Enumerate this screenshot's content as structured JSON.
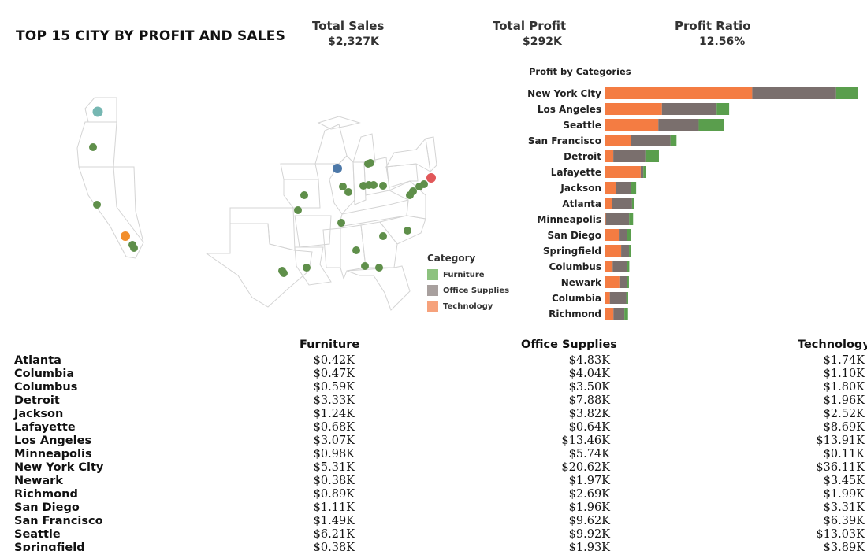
{
  "dashboard": {
    "title": "TOP 15 CITY BY PROFIT AND SALES"
  },
  "kpis": {
    "total_sales": {
      "label": "Total Sales",
      "value": "$2,327K"
    },
    "total_profit": {
      "label": "Total Profit",
      "value": "$292K"
    },
    "profit_ratio": {
      "label": "Profit Ratio",
      "value": "12.56%"
    }
  },
  "colors": {
    "furniture": "#5a9e4d",
    "office_supplies": "#7a6f6d",
    "technology": "#f47c42",
    "legend_furniture": "#8dc27f",
    "legend_office_supplies": "#a8a09e",
    "legend_technology": "#f6a27c",
    "map_point": "#5f8f4a",
    "map_highlight_blue": "#4c78a8",
    "map_highlight_red": "#e15759",
    "map_highlight_orange": "#f28e2b",
    "map_highlight_teal": "#76b7b2"
  },
  "legend": {
    "title": "Category",
    "items": [
      {
        "label": "Furniture",
        "color_key": "legend_furniture"
      },
      {
        "label": "Office Supplies",
        "color_key": "legend_office_supplies"
      },
      {
        "label": "Technology",
        "color_key": "legend_technology"
      }
    ]
  },
  "chart_data": {
    "type": "bar",
    "orientation": "horizontal",
    "stacked": true,
    "title": "Profit by Categories",
    "categories": [
      "New York City",
      "Los Angeles",
      "Seattle",
      "San Francisco",
      "Detroit",
      "Lafayette",
      "Jackson",
      "Atlanta",
      "Minneapolis",
      "San Diego",
      "Springfield",
      "Columbus",
      "Newark",
      "Columbia",
      "Richmond"
    ],
    "series": [
      {
        "name": "Technology",
        "values": [
          36.11,
          13.91,
          13.03,
          6.39,
          1.96,
          8.69,
          2.52,
          1.74,
          0.11,
          3.31,
          3.89,
          1.8,
          3.45,
          1.1,
          1.99
        ]
      },
      {
        "name": "Office Supplies",
        "values": [
          20.62,
          13.46,
          9.92,
          9.62,
          7.88,
          0.64,
          3.82,
          4.83,
          5.74,
          1.96,
          1.93,
          3.5,
          1.97,
          4.04,
          2.69
        ]
      },
      {
        "name": "Furniture",
        "values": [
          5.31,
          3.07,
          6.21,
          1.49,
          3.33,
          0.68,
          1.24,
          0.42,
          0.98,
          1.11,
          0.38,
          0.59,
          0.38,
          0.47,
          0.89
        ]
      }
    ],
    "unit": "$K",
    "xlim": [
      0,
      62
    ]
  },
  "table": {
    "headers": {
      "furniture": "Furniture",
      "office_supplies": "Office Supplies",
      "technology": "Technology"
    },
    "rows": [
      {
        "city": "Atlanta",
        "furniture": "$0.42K",
        "office_supplies": "$4.83K",
        "technology": "$1.74K"
      },
      {
        "city": "Columbia",
        "furniture": "$0.47K",
        "office_supplies": "$4.04K",
        "technology": "$1.10K"
      },
      {
        "city": "Columbus",
        "furniture": "$0.59K",
        "office_supplies": "$3.50K",
        "technology": "$1.80K"
      },
      {
        "city": "Detroit",
        "furniture": "$3.33K",
        "office_supplies": "$7.88K",
        "technology": "$1.96K"
      },
      {
        "city": "Jackson",
        "furniture": "$1.24K",
        "office_supplies": "$3.82K",
        "technology": "$2.52K"
      },
      {
        "city": "Lafayette",
        "furniture": "$0.68K",
        "office_supplies": "$0.64K",
        "technology": "$8.69K"
      },
      {
        "city": "Los Angeles",
        "furniture": "$3.07K",
        "office_supplies": "$13.46K",
        "technology": "$13.91K"
      },
      {
        "city": "Minneapolis",
        "furniture": "$0.98K",
        "office_supplies": "$5.74K",
        "technology": "$0.11K"
      },
      {
        "city": "New York City",
        "furniture": "$5.31K",
        "office_supplies": "$20.62K",
        "technology": "$36.11K"
      },
      {
        "city": "Newark",
        "furniture": "$0.38K",
        "office_supplies": "$1.97K",
        "technology": "$3.45K"
      },
      {
        "city": "Richmond",
        "furniture": "$0.89K",
        "office_supplies": "$2.69K",
        "technology": "$1.99K"
      },
      {
        "city": "San Diego",
        "furniture": "$1.11K",
        "office_supplies": "$1.96K",
        "technology": "$3.31K"
      },
      {
        "city": "San Francisco",
        "furniture": "$1.49K",
        "office_supplies": "$9.62K",
        "technology": "$6.39K"
      },
      {
        "city": "Seattle",
        "furniture": "$6.21K",
        "office_supplies": "$9.92K",
        "technology": "$13.03K"
      },
      {
        "city": "Springfield",
        "furniture": "$0.38K",
        "office_supplies": "$1.93K",
        "technology": "$3.89K"
      }
    ]
  }
}
